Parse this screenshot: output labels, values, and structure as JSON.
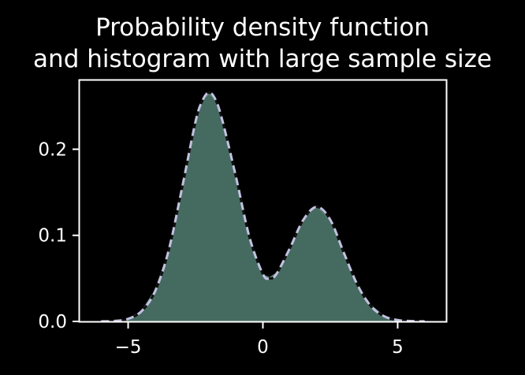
{
  "chart_data": {
    "type": "area",
    "title_line1": "Probability density function",
    "title_line2": "and histogram with large sample size",
    "xlabel": "",
    "ylabel": "",
    "xlim": [
      -6.8,
      6.8
    ],
    "ylim": [
      0,
      0.28
    ],
    "xticks": [
      {
        "value": -5,
        "label": "−5"
      },
      {
        "value": 0,
        "label": "0"
      },
      {
        "value": 5,
        "label": "5"
      }
    ],
    "yticks": [
      {
        "value": 0.0,
        "label": "0.0"
      },
      {
        "value": 0.1,
        "label": "0.1"
      },
      {
        "value": 0.2,
        "label": "0.2"
      }
    ],
    "pdf": {
      "x": [
        -6.0,
        -5.5,
        -5.0,
        -4.5,
        -4.0,
        -3.5,
        -3.0,
        -2.5,
        -2.25,
        -2.0,
        -1.75,
        -1.5,
        -1.0,
        -0.5,
        0.0,
        0.25,
        0.5,
        1.0,
        1.5,
        2.0,
        2.5,
        3.0,
        3.5,
        4.0,
        4.5,
        5.0,
        5.5,
        6.0
      ],
      "y": [
        0.0001,
        0.0006,
        0.003,
        0.012,
        0.035,
        0.082,
        0.155,
        0.232,
        0.256,
        0.266,
        0.257,
        0.233,
        0.168,
        0.098,
        0.055,
        0.05,
        0.055,
        0.085,
        0.118,
        0.133,
        0.118,
        0.08,
        0.043,
        0.018,
        0.006,
        0.0016,
        0.0004,
        0.0001
      ]
    },
    "histogram": {
      "x": [
        -6.0,
        -5.5,
        -5.0,
        -4.5,
        -4.0,
        -3.5,
        -3.0,
        -2.5,
        -2.25,
        -2.0,
        -1.75,
        -1.5,
        -1.0,
        -0.5,
        0.0,
        0.25,
        0.5,
        1.0,
        1.5,
        2.0,
        2.5,
        3.0,
        3.5,
        4.0,
        4.5,
        5.0,
        5.5,
        6.0
      ],
      "y": [
        0.0001,
        0.0006,
        0.003,
        0.012,
        0.036,
        0.081,
        0.156,
        0.231,
        0.258,
        0.264,
        0.259,
        0.232,
        0.169,
        0.097,
        0.054,
        0.051,
        0.056,
        0.084,
        0.119,
        0.134,
        0.117,
        0.081,
        0.042,
        0.019,
        0.006,
        0.0016,
        0.0004,
        0.0001
      ]
    },
    "colors": {
      "background": "#000000",
      "axes": "#ffffff",
      "histogram_fill": "#456b61",
      "histogram_edge": "#5e8a7d",
      "pdf_dash_light": "#c3c1e0",
      "pdf_dash_dark": "#101010"
    },
    "grid": false,
    "legend": "none"
  }
}
